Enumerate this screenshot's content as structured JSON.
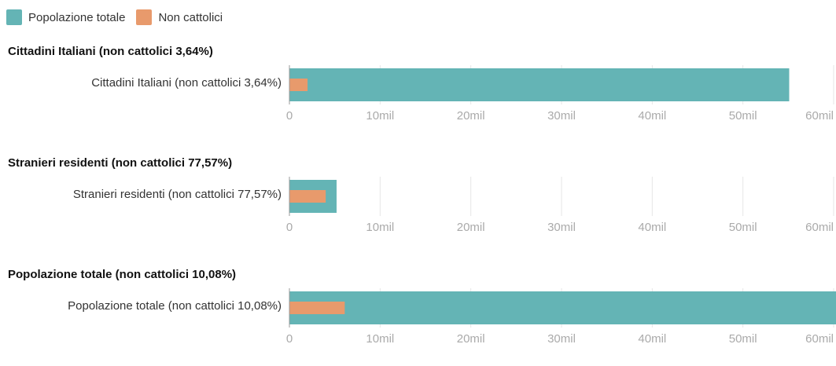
{
  "legend": [
    {
      "label": "Popolazione totale",
      "color": "#64b4b5"
    },
    {
      "label": "Non cattolici",
      "color": "#e89a6c"
    }
  ],
  "colors": {
    "total": "#64b4b5",
    "non_catholic": "#e89a6c",
    "grid": "#e6e6e6",
    "axis": "#9a9a9a",
    "tick_text": "#aaaaaa"
  },
  "chart_data": [
    {
      "type": "bar",
      "title": "Cittadini Italiani (non cattolici 3,64%)",
      "categories": [
        "Cittadini Italiani (non cattolici 3,64%)"
      ],
      "series": [
        {
          "name": "Popolazione totale",
          "values": [
            55.1
          ]
        },
        {
          "name": "Non cattolici",
          "values": [
            2.0
          ]
        }
      ],
      "xlim": [
        0,
        60
      ],
      "tick_labels": [
        "0",
        "10mil",
        "20mil",
        "30mil",
        "40mil",
        "50mil",
        "60mil"
      ],
      "grid": true,
      "legend": "top-left"
    },
    {
      "type": "bar",
      "title": "Stranieri residenti (non cattolici 77,57%)",
      "categories": [
        "Stranieri residenti (non cattolici 77,57%)"
      ],
      "series": [
        {
          "name": "Popolazione totale",
          "values": [
            5.2
          ]
        },
        {
          "name": "Non cattolici",
          "values": [
            4.0
          ]
        }
      ],
      "xlim": [
        0,
        60
      ],
      "tick_labels": [
        "0",
        "10mil",
        "20mil",
        "30mil",
        "40mil",
        "50mil",
        "60mil"
      ],
      "grid": true,
      "legend": "top-left"
    },
    {
      "type": "bar",
      "title": "Popolazione totale (non cattolici 10,08%)",
      "categories": [
        "Popolazione totale (non cattolici 10,08%)"
      ],
      "series": [
        {
          "name": "Popolazione totale",
          "values": [
            60.3
          ]
        },
        {
          "name": "Non cattolici",
          "values": [
            6.1
          ]
        }
      ],
      "xlim": [
        0,
        60
      ],
      "tick_labels": [
        "0",
        "10mil",
        "20mil",
        "30mil",
        "40mil",
        "50mil",
        "60mil"
      ],
      "grid": true,
      "legend": "top-left"
    }
  ]
}
